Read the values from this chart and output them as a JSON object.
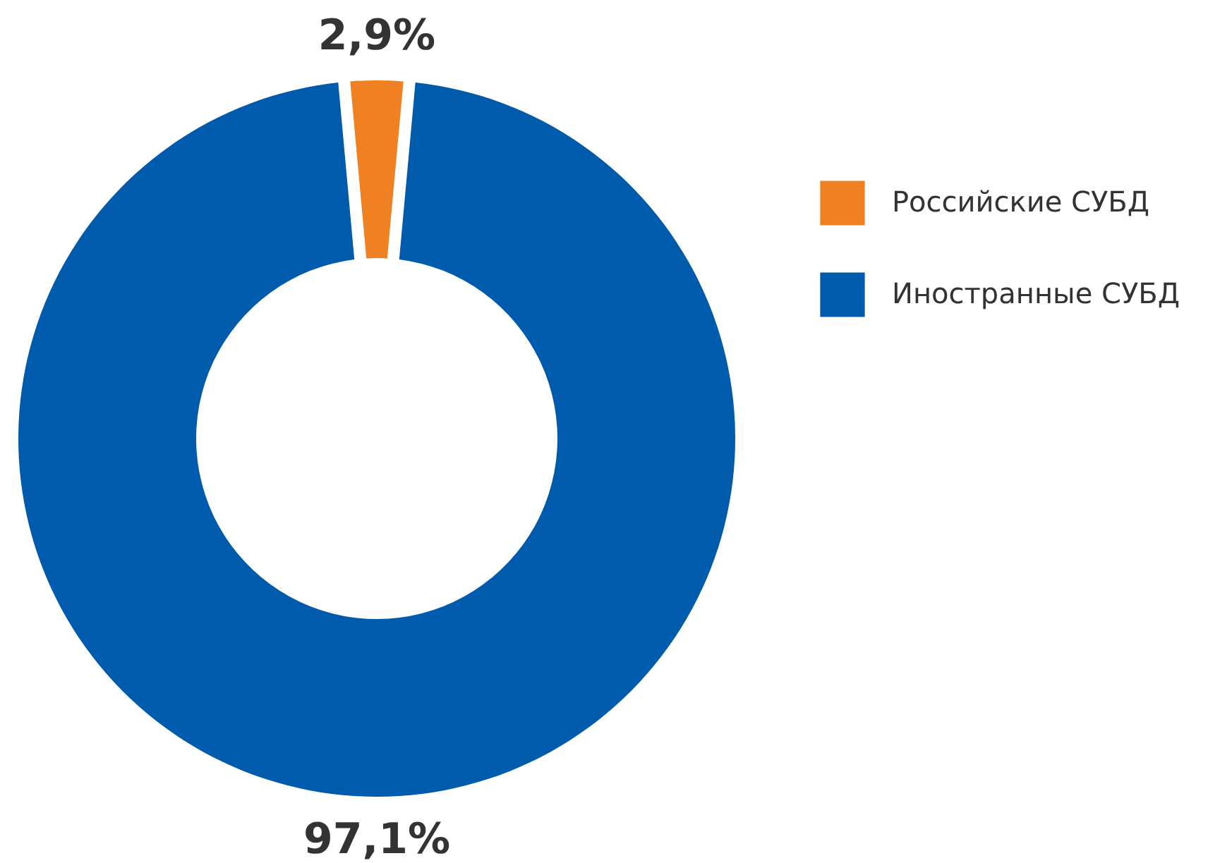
{
  "chart_data": {
    "type": "donut",
    "categories": [
      "Российские СУБД",
      "Иностранные СУБД"
    ],
    "values": [
      2.9,
      97.1
    ],
    "colors": [
      "#f08122",
      "#005bac"
    ],
    "value_labels": [
      "2,9%",
      "97,1%"
    ],
    "legend": "right"
  }
}
